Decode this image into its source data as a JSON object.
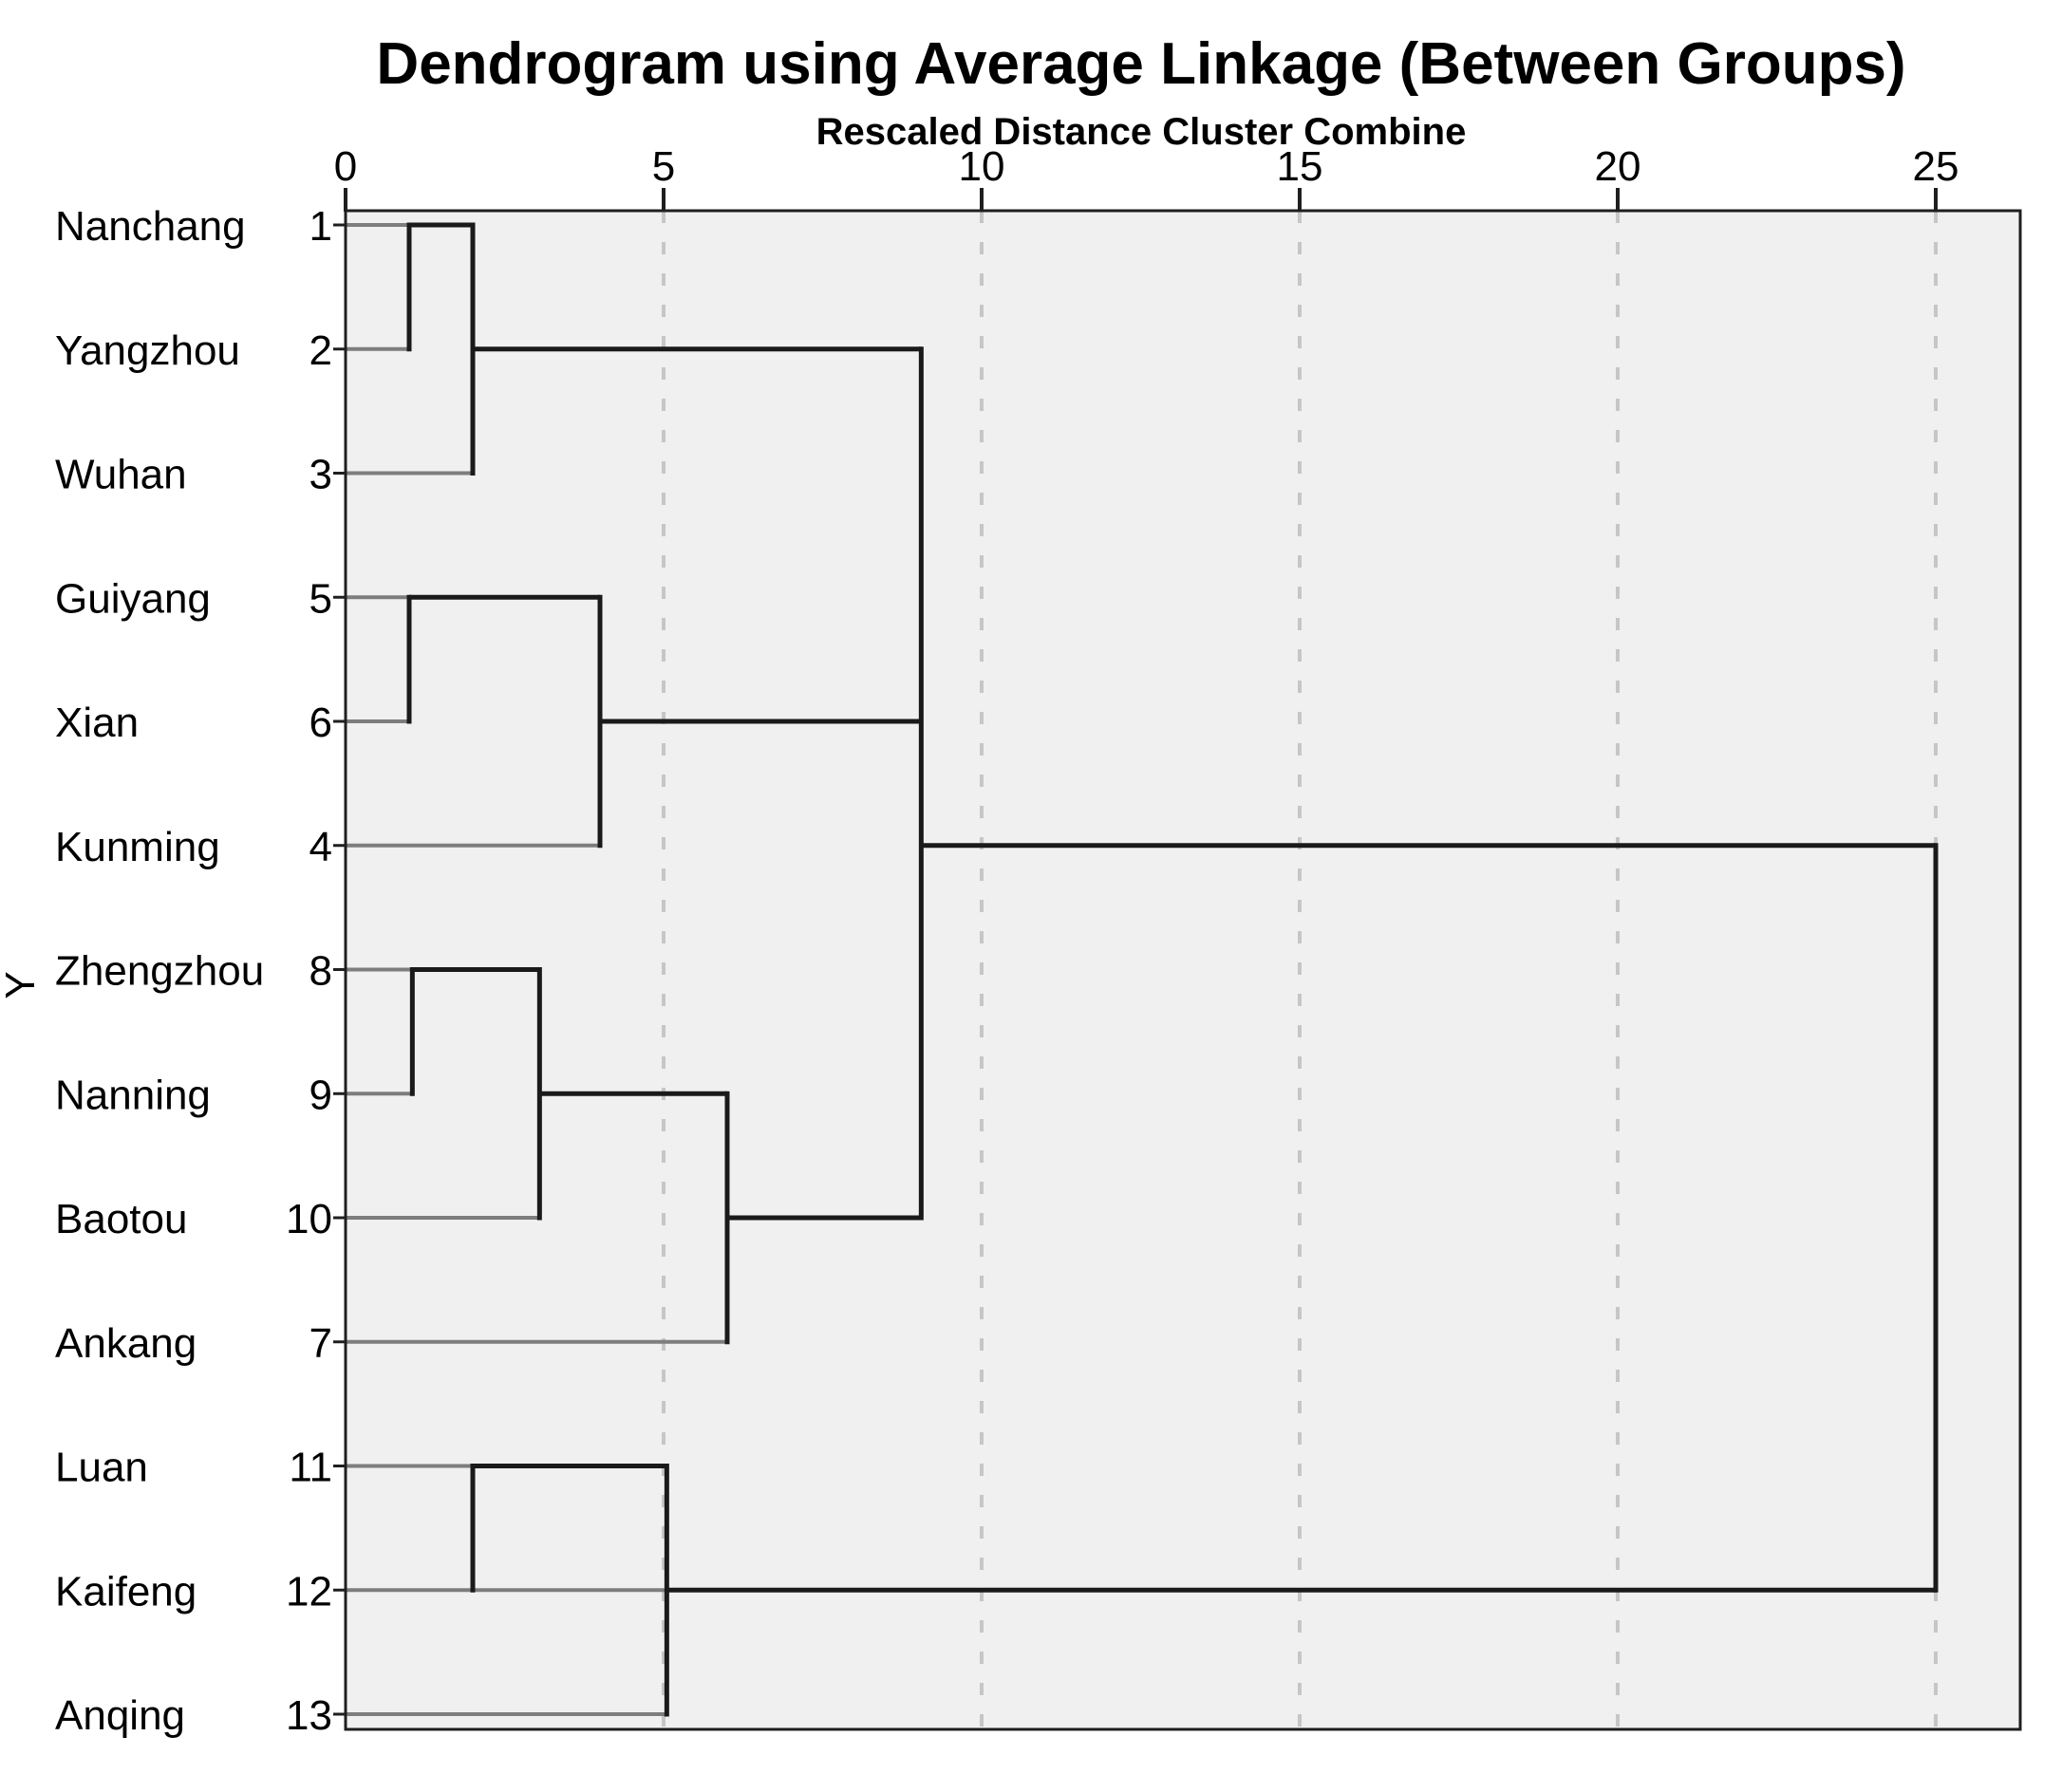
{
  "chart_data": {
    "type": "dendrogram",
    "title": "Dendrogram using Average Linkage (Between Groups)",
    "subtitle": "Rescaled Distance Cluster Combine",
    "y_axis_label": "Y",
    "x_axis": {
      "min": 0,
      "max": 25,
      "ticks": [
        0,
        5,
        10,
        15,
        20,
        25
      ],
      "dashed_gridlines_at": [
        5,
        10,
        15,
        20,
        25
      ]
    },
    "leaves": [
      {
        "label": "Nanchang",
        "case_number": "1",
        "stub_to_distance": 1.0
      },
      {
        "label": "Yangzhou",
        "case_number": "2",
        "stub_to_distance": 1.0
      },
      {
        "label": "Wuhan",
        "case_number": "3",
        "stub_to_distance": 2.0
      },
      {
        "label": "Guiyang",
        "case_number": "5",
        "stub_to_distance": 1.0
      },
      {
        "label": "Xian",
        "case_number": "6",
        "stub_to_distance": 1.0
      },
      {
        "label": "Kunming",
        "case_number": "4",
        "stub_to_distance": 4.0
      },
      {
        "label": "Zhengzhou",
        "case_number": "8",
        "stub_to_distance": 1.05
      },
      {
        "label": "Nanning",
        "case_number": "9",
        "stub_to_distance": 1.05
      },
      {
        "label": "Baotou",
        "case_number": "10",
        "stub_to_distance": 3.05
      },
      {
        "label": "Ankang",
        "case_number": "7",
        "stub_to_distance": 6.0
      },
      {
        "label": "Luan",
        "case_number": "11",
        "stub_to_distance": 2.0
      },
      {
        "label": "Kaifeng",
        "case_number": "12",
        "stub_to_distance": 5.05
      },
      {
        "label": "Anqing",
        "case_number": "13",
        "stub_to_distance": 5.05
      }
    ],
    "merges": [
      {
        "members": "Nanchang + Yangzhou",
        "distance": 1.0
      },
      {
        "members": "{Nanchang,Yangzhou} + Wuhan",
        "distance": 2.0
      },
      {
        "members": "Guiyang + Xian",
        "distance": 1.0
      },
      {
        "members": "{Guiyang,Xian} + Kunming",
        "distance": 4.0
      },
      {
        "members": "Zhengzhou + Nanning",
        "distance": 1.05
      },
      {
        "members": "{Zhengzhou,Nanning} + Baotou",
        "distance": 3.05
      },
      {
        "members": "{Zhengzhou,Nanning,Baotou} + Ankang",
        "distance": 6.0
      },
      {
        "members": "Luan + Kaifeng",
        "distance": 2.0
      },
      {
        "members": "{Luan,Kaifeng} + Anqing",
        "distance": 5.05
      },
      {
        "members": "{1,2,3} + {5,6,4} + {8,9,10,7}",
        "distance": 9.05
      },
      {
        "members": "all upper clusters + {11,12,13}",
        "distance": 25.0
      }
    ],
    "links": {
      "verticals": [
        {
          "d": 1.0,
          "top_row": 0,
          "bottom_row": 1
        },
        {
          "d": 2.0,
          "top_row": 0,
          "bottom_row": 2
        },
        {
          "d": 1.0,
          "top_row": 3,
          "bottom_row": 4
        },
        {
          "d": 4.0,
          "top_row": 3,
          "bottom_row": 5
        },
        {
          "d": 1.05,
          "top_row": 6,
          "bottom_row": 7
        },
        {
          "d": 3.05,
          "top_row": 6,
          "bottom_row": 8
        },
        {
          "d": 6.0,
          "top_row": 7,
          "bottom_row": 9
        },
        {
          "d": 2.0,
          "top_row": 10,
          "bottom_row": 11
        },
        {
          "d": 5.05,
          "top_row": 10,
          "bottom_row": 12
        },
        {
          "d": 9.05,
          "top_row": 1,
          "bottom_row": 8
        },
        {
          "d": 25.0,
          "top_row": 5,
          "bottom_row": 11
        }
      ],
      "horizontals": [
        {
          "row": 0,
          "from": 1.0,
          "to": 2.0
        },
        {
          "row": 1,
          "from": 2.0,
          "to": 9.05
        },
        {
          "row": 3,
          "from": 1.0,
          "to": 4.0
        },
        {
          "row": 4,
          "from": 4.0,
          "to": 9.05
        },
        {
          "row": 6,
          "from": 1.05,
          "to": 3.05
        },
        {
          "row": 7,
          "from": 3.05,
          "to": 6.0
        },
        {
          "row": 8,
          "from": 6.0,
          "to": 9.05
        },
        {
          "row": 10,
          "from": 2.0,
          "to": 5.05
        },
        {
          "row": 11,
          "from": 5.05,
          "to": 25.0
        },
        {
          "row": 5,
          "from": 9.05,
          "to": 25.0
        }
      ]
    },
    "colors": {
      "plot_background": "#f0f0f0",
      "cluster_line": "#1a1a1a",
      "leaf_stub": "#7d7d7d",
      "gridline": "#c6c6c6",
      "border": "#1f1f1f",
      "text": "#000000"
    }
  }
}
